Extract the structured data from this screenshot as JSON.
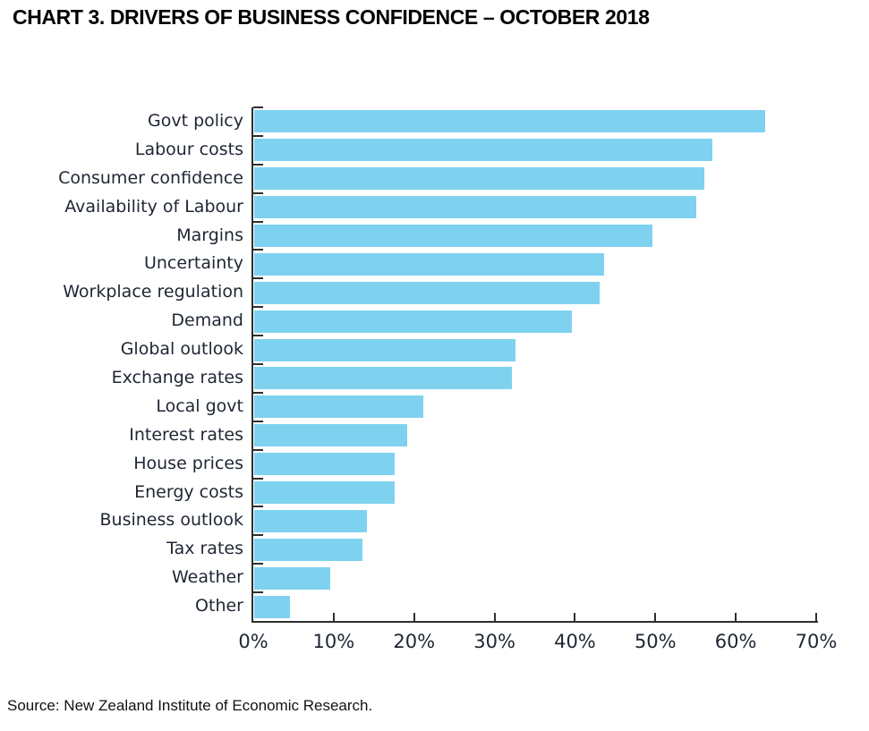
{
  "page": {
    "title": "CHART 3. DRIVERS OF BUSINESS CONFIDENCE – OCTOBER 2018",
    "source": "Source: New Zealand Institute of Economic Research."
  },
  "chart_data": {
    "type": "bar",
    "orientation": "horizontal",
    "title": "CHART 3. DRIVERS OF BUSINESS CONFIDENCE – OCTOBER 2018",
    "categories": [
      "Govt policy",
      "Labour costs",
      "Consumer confidence",
      "Availability of Labour",
      "Margins",
      "Uncertainty",
      "Workplace regulation",
      "Demand",
      "Global outlook",
      "Exchange rates",
      "Local govt",
      "Interest rates",
      "House prices",
      "Energy costs",
      "Business outlook",
      "Tax rates",
      "Weather",
      "Other"
    ],
    "values": [
      63.5,
      57,
      56,
      55,
      49.5,
      43.5,
      43,
      39.5,
      32.5,
      32,
      21,
      19,
      17.5,
      17.5,
      14,
      13.5,
      9.5,
      4.5
    ],
    "value_unit": "%",
    "x_tick_labels": [
      "0%",
      "10%",
      "20%",
      "30%",
      "40%",
      "50%",
      "60%",
      "70%"
    ],
    "xlim": [
      0,
      70
    ],
    "xlabel": "",
    "ylabel": "",
    "grid": false,
    "legend": false,
    "colors": {
      "bar": "#7ED2F0",
      "axis": "#2E2E2E",
      "text": "#1E2633"
    }
  }
}
